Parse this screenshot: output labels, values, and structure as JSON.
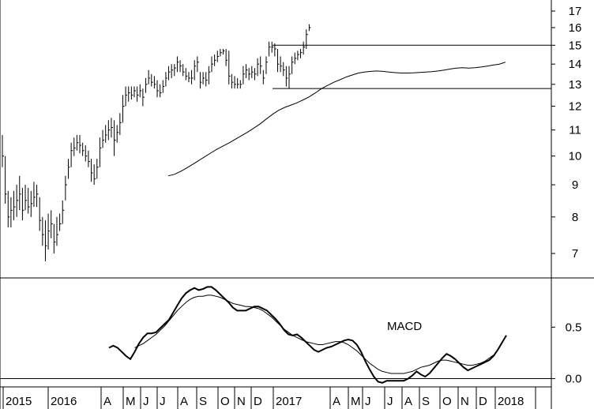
{
  "chart_data": [
    {
      "type": "line",
      "title": "",
      "price_scale": "log",
      "y_ticks": [
        "17",
        "16",
        "15",
        "14",
        "13",
        "12",
        "11",
        "10",
        "9",
        "8",
        "7"
      ],
      "y_tick_values": [
        17,
        16,
        15,
        14,
        13,
        12,
        11,
        10,
        9,
        8,
        7
      ],
      "ylim": [
        6.4,
        17.6
      ],
      "x_labels": [
        "2015",
        "2016",
        "A",
        "M",
        "J",
        "J",
        "A",
        "S",
        "O",
        "N",
        "D",
        "2017",
        "A",
        "M",
        "J",
        "J",
        "A",
        "S",
        "O",
        "N",
        "D",
        "2018"
      ],
      "resistance": 15.0,
      "support": 12.8,
      "bars": [
        {
          "lo": 9.6,
          "hi": 10.8,
          "c": 10.0
        },
        {
          "lo": 8.4,
          "hi": 10.0,
          "c": 8.7
        },
        {
          "lo": 7.7,
          "hi": 8.8,
          "c": 8.0
        },
        {
          "lo": 7.7,
          "hi": 8.6,
          "c": 8.2
        },
        {
          "lo": 7.9,
          "hi": 8.8,
          "c": 8.3
        },
        {
          "lo": 8.0,
          "hi": 9.0,
          "c": 8.5
        },
        {
          "lo": 8.2,
          "hi": 9.3,
          "c": 8.7
        },
        {
          "lo": 7.9,
          "hi": 8.9,
          "c": 8.2
        },
        {
          "lo": 8.2,
          "hi": 9.0,
          "c": 8.5
        },
        {
          "lo": 8.1,
          "hi": 8.9,
          "c": 8.3
        },
        {
          "lo": 8.0,
          "hi": 8.8,
          "c": 8.4
        },
        {
          "lo": 8.3,
          "hi": 9.1,
          "c": 8.6
        },
        {
          "lo": 8.3,
          "hi": 9.0,
          "c": 8.7
        },
        {
          "lo": 7.6,
          "hi": 8.6,
          "c": 7.9
        },
        {
          "lo": 7.2,
          "hi": 8.0,
          "c": 7.5
        },
        {
          "lo": 6.8,
          "hi": 7.9,
          "c": 7.2
        },
        {
          "lo": 7.1,
          "hi": 8.1,
          "c": 7.6
        },
        {
          "lo": 7.4,
          "hi": 8.2,
          "c": 7.8
        },
        {
          "lo": 7.0,
          "hi": 7.8,
          "c": 7.3
        },
        {
          "lo": 7.2,
          "hi": 8.0,
          "c": 7.5
        },
        {
          "lo": 7.6,
          "hi": 8.1,
          "c": 7.8
        },
        {
          "lo": 7.8,
          "hi": 8.5,
          "c": 8.2
        },
        {
          "lo": 8.5,
          "hi": 9.3,
          "c": 9.0
        },
        {
          "lo": 9.2,
          "hi": 9.9,
          "c": 9.6
        },
        {
          "lo": 9.6,
          "hi": 10.5,
          "c": 10.2
        },
        {
          "lo": 10.0,
          "hi": 10.7,
          "c": 10.3
        },
        {
          "lo": 10.2,
          "hi": 10.8,
          "c": 10.5
        },
        {
          "lo": 10.1,
          "hi": 10.8,
          "c": 10.4
        },
        {
          "lo": 10.0,
          "hi": 10.5,
          "c": 10.2
        },
        {
          "lo": 9.8,
          "hi": 10.4,
          "c": 10.0
        },
        {
          "lo": 9.6,
          "hi": 10.2,
          "c": 9.8
        },
        {
          "lo": 9.1,
          "hi": 9.9,
          "c": 9.4
        },
        {
          "lo": 9.0,
          "hi": 9.7,
          "c": 9.2
        },
        {
          "lo": 9.2,
          "hi": 9.9,
          "c": 9.6
        },
        {
          "lo": 9.6,
          "hi": 10.7,
          "c": 10.3
        },
        {
          "lo": 10.3,
          "hi": 11.0,
          "c": 10.6
        },
        {
          "lo": 10.5,
          "hi": 11.2,
          "c": 10.8
        },
        {
          "lo": 10.6,
          "hi": 11.4,
          "c": 11.0
        },
        {
          "lo": 10.7,
          "hi": 11.5,
          "c": 11.1
        },
        {
          "lo": 10.0,
          "hi": 11.4,
          "c": 10.6
        },
        {
          "lo": 10.5,
          "hi": 11.2,
          "c": 10.9
        },
        {
          "lo": 10.8,
          "hi": 11.7,
          "c": 11.3
        },
        {
          "lo": 11.3,
          "hi": 12.5,
          "c": 12.0
        },
        {
          "lo": 12.0,
          "hi": 12.9,
          "c": 12.5
        },
        {
          "lo": 12.2,
          "hi": 12.9,
          "c": 12.6
        },
        {
          "lo": 12.3,
          "hi": 12.9,
          "c": 12.5
        },
        {
          "lo": 12.4,
          "hi": 12.9,
          "c": 12.7
        },
        {
          "lo": 12.2,
          "hi": 12.9,
          "c": 12.5
        },
        {
          "lo": 12.4,
          "hi": 13.0,
          "c": 12.7
        },
        {
          "lo": 12.0,
          "hi": 12.8,
          "c": 12.4
        },
        {
          "lo": 12.6,
          "hi": 13.3,
          "c": 13.0
        },
        {
          "lo": 13.0,
          "hi": 13.7,
          "c": 13.3
        },
        {
          "lo": 12.9,
          "hi": 13.5,
          "c": 13.1
        },
        {
          "lo": 12.8,
          "hi": 13.4,
          "c": 13.0
        },
        {
          "lo": 12.4,
          "hi": 13.2,
          "c": 12.7
        },
        {
          "lo": 12.4,
          "hi": 13.0,
          "c": 12.6
        },
        {
          "lo": 12.6,
          "hi": 13.2,
          "c": 12.9
        },
        {
          "lo": 12.9,
          "hi": 13.6,
          "c": 13.3
        },
        {
          "lo": 13.2,
          "hi": 13.9,
          "c": 13.6
        },
        {
          "lo": 13.3,
          "hi": 14.0,
          "c": 13.7
        },
        {
          "lo": 13.4,
          "hi": 14.0,
          "c": 13.8
        },
        {
          "lo": 13.6,
          "hi": 14.4,
          "c": 14.1
        },
        {
          "lo": 13.6,
          "hi": 14.2,
          "c": 13.9
        },
        {
          "lo": 13.4,
          "hi": 14.0,
          "c": 13.6
        },
        {
          "lo": 13.2,
          "hi": 13.8,
          "c": 13.4
        },
        {
          "lo": 13.1,
          "hi": 13.6,
          "c": 13.3
        },
        {
          "lo": 13.0,
          "hi": 13.7,
          "c": 13.3
        },
        {
          "lo": 13.2,
          "hi": 14.2,
          "c": 13.9
        },
        {
          "lo": 13.6,
          "hi": 14.4,
          "c": 14.1
        },
        {
          "lo": 12.8,
          "hi": 13.6,
          "c": 13.1
        },
        {
          "lo": 13.0,
          "hi": 13.6,
          "c": 13.3
        },
        {
          "lo": 12.9,
          "hi": 13.6,
          "c": 13.2
        },
        {
          "lo": 13.0,
          "hi": 13.9,
          "c": 13.6
        },
        {
          "lo": 13.6,
          "hi": 14.4,
          "c": 14.0
        },
        {
          "lo": 13.9,
          "hi": 14.5,
          "c": 14.2
        },
        {
          "lo": 14.1,
          "hi": 14.7,
          "c": 14.4
        },
        {
          "lo": 14.4,
          "hi": 14.8,
          "c": 14.6
        },
        {
          "lo": 14.5,
          "hi": 14.8,
          "c": 14.7
        },
        {
          "lo": 13.9,
          "hi": 14.8,
          "c": 14.2
        },
        {
          "lo": 13.0,
          "hi": 14.7,
          "c": 13.4
        },
        {
          "lo": 12.8,
          "hi": 13.5,
          "c": 13.1
        },
        {
          "lo": 12.8,
          "hi": 13.4,
          "c": 13.0
        },
        {
          "lo": 12.8,
          "hi": 13.3,
          "c": 13.0
        },
        {
          "lo": 12.8,
          "hi": 13.2,
          "c": 13.0
        },
        {
          "lo": 13.0,
          "hi": 13.9,
          "c": 13.5
        },
        {
          "lo": 13.3,
          "hi": 14.0,
          "c": 13.7
        },
        {
          "lo": 13.2,
          "hi": 13.8,
          "c": 13.5
        },
        {
          "lo": 13.3,
          "hi": 13.9,
          "c": 13.6
        },
        {
          "lo": 13.2,
          "hi": 13.8,
          "c": 13.5
        },
        {
          "lo": 13.4,
          "hi": 14.3,
          "c": 14.0
        },
        {
          "lo": 13.5,
          "hi": 14.4,
          "c": 13.9
        },
        {
          "lo": 13.0,
          "hi": 13.7,
          "c": 13.3
        },
        {
          "lo": 13.5,
          "hi": 14.4,
          "c": 14.1
        },
        {
          "lo": 14.4,
          "hi": 15.2,
          "c": 14.9
        },
        {
          "lo": 14.6,
          "hi": 15.2,
          "c": 14.9
        },
        {
          "lo": 14.4,
          "hi": 15.1,
          "c": 14.8
        },
        {
          "lo": 13.6,
          "hi": 14.8,
          "c": 14.0
        },
        {
          "lo": 13.6,
          "hi": 14.4,
          "c": 13.9
        },
        {
          "lo": 13.4,
          "hi": 14.1,
          "c": 13.7
        },
        {
          "lo": 12.9,
          "hi": 13.9,
          "c": 13.3
        },
        {
          "lo": 12.8,
          "hi": 13.9,
          "c": 13.5
        },
        {
          "lo": 13.5,
          "hi": 14.4,
          "c": 14.1
        },
        {
          "lo": 14.0,
          "hi": 14.6,
          "c": 14.3
        },
        {
          "lo": 14.2,
          "hi": 14.7,
          "c": 14.5
        },
        {
          "lo": 14.3,
          "hi": 14.8,
          "c": 14.6
        },
        {
          "lo": 14.5,
          "hi": 15.2,
          "c": 14.9
        },
        {
          "lo": 14.8,
          "hi": 15.9,
          "c": 15.6
        },
        {
          "lo": 15.8,
          "hi": 16.2,
          "c": 16.0
        }
      ],
      "moving_average": [
        9.3,
        9.35,
        9.45,
        9.57,
        9.7,
        9.84,
        9.98,
        10.12,
        10.26,
        10.38,
        10.5,
        10.64,
        10.78,
        10.92,
        11.08,
        11.25,
        11.45,
        11.65,
        11.82,
        11.95,
        12.05,
        12.15,
        12.28,
        12.42,
        12.6,
        12.8,
        12.95,
        13.1,
        13.22,
        13.35,
        13.45,
        13.55,
        13.6,
        13.63,
        13.65,
        13.63,
        13.6,
        13.57,
        13.55,
        13.55,
        13.56,
        13.58,
        13.6,
        13.62,
        13.65,
        13.7,
        13.75,
        13.8,
        13.82,
        13.8,
        13.82,
        13.85,
        13.9,
        13.95,
        14.0,
        14.1
      ]
    },
    {
      "type": "line",
      "title": "",
      "annotation": "MACD",
      "y_ticks": [
        "0.5",
        "0.0"
      ],
      "y_tick_values": [
        0.5,
        0.0
      ],
      "ylim": [
        -0.08,
        0.97
      ],
      "series": [
        {
          "values": [
            0.3,
            0.32,
            0.3,
            0.26,
            0.22,
            0.19,
            0.26,
            0.34,
            0.4,
            0.44,
            0.44,
            0.45,
            0.49,
            0.53,
            0.57,
            0.64,
            0.71,
            0.78,
            0.83,
            0.86,
            0.88,
            0.86,
            0.87,
            0.89,
            0.89,
            0.86,
            0.82,
            0.78,
            0.74,
            0.69,
            0.66,
            0.66,
            0.66,
            0.68,
            0.7,
            0.7,
            0.68,
            0.66,
            0.62,
            0.58,
            0.53,
            0.47,
            0.43,
            0.42,
            0.43,
            0.4,
            0.36,
            0.32,
            0.28,
            0.26,
            0.28,
            0.3,
            0.31,
            0.33,
            0.35,
            0.37,
            0.38,
            0.37,
            0.33,
            0.26,
            0.17,
            0.09,
            0.02,
            -0.03,
            -0.04,
            -0.02,
            -0.02,
            -0.02,
            -0.02,
            -0.02,
            0.0,
            0.03,
            0.07,
            0.04,
            0.02,
            0.05,
            0.1,
            0.15,
            0.2,
            0.24,
            0.22,
            0.19,
            0.15,
            0.11,
            0.08,
            0.1,
            0.12,
            0.14,
            0.16,
            0.18,
            0.22,
            0.28,
            0.35,
            0.42
          ]
        },
        {
          "values": [
            null,
            null,
            null,
            null,
            null,
            null,
            0.3,
            0.32,
            0.34,
            0.37,
            0.4,
            0.43,
            0.47,
            0.51,
            0.56,
            0.61,
            0.66,
            0.7,
            0.74,
            0.77,
            0.79,
            0.8,
            0.8,
            0.81,
            0.81,
            0.8,
            0.79,
            0.77,
            0.75,
            0.73,
            0.72,
            0.71,
            0.7,
            0.7,
            0.69,
            0.68,
            0.66,
            0.63,
            0.6,
            0.56,
            0.52,
            0.48,
            0.45,
            0.42,
            0.4,
            0.38,
            0.36,
            0.35,
            0.34,
            0.33,
            0.33,
            0.34,
            0.35,
            0.36,
            0.36,
            0.35,
            0.33,
            0.3,
            0.27,
            0.23,
            0.19,
            0.15,
            0.12,
            0.09,
            0.07,
            0.06,
            0.05,
            0.05,
            0.05,
            0.05,
            0.06,
            0.07,
            0.09,
            0.11,
            0.12,
            0.13,
            0.15,
            0.17,
            0.18,
            0.18,
            0.17,
            0.16,
            0.15,
            0.14,
            0.13,
            0.13,
            0.14,
            0.15,
            0.17,
            0.2,
            0.23
          ]
        }
      ]
    }
  ]
}
